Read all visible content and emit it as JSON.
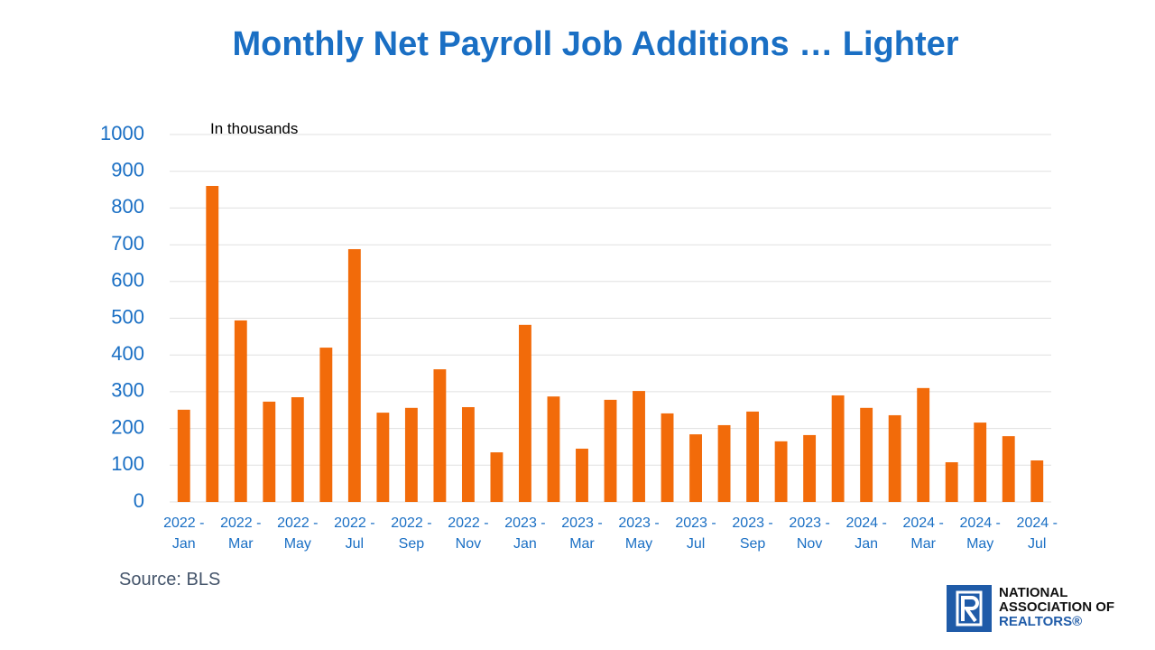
{
  "chart_data": {
    "type": "bar",
    "title": "Monthly Net Payroll Job Additions … Lighter",
    "annotation": "In thousands",
    "source": "Source: BLS",
    "categories": [
      "2022 - Jan",
      null,
      "2022 - Mar",
      null,
      "2022 - May",
      null,
      "2022 - Jul",
      null,
      "2022 - Sep",
      null,
      "2022 - Nov",
      null,
      "2023 - Jan",
      null,
      "2023 - Mar",
      null,
      "2023 - May",
      null,
      "2023 - Jul",
      null,
      "2023 - Sep",
      null,
      "2023 - Nov",
      null,
      "2024 - Jan",
      null,
      "2024 - Mar",
      null,
      "2024 - May",
      null,
      "2024 - Jul"
    ],
    "values": [
      251,
      860,
      494,
      273,
      285,
      420,
      688,
      243,
      256,
      361,
      258,
      135,
      482,
      287,
      145,
      278,
      302,
      241,
      184,
      209,
      246,
      165,
      182,
      290,
      256,
      236,
      310,
      108,
      216,
      179,
      113
    ],
    "color": "#f26b0a",
    "ylim": [
      0,
      1000
    ],
    "yticks": [
      0,
      100,
      200,
      300,
      400,
      500,
      600,
      700,
      800,
      900,
      1000
    ],
    "grid": true
  },
  "logo": {
    "lines": [
      "NATIONAL",
      "ASSOCIATION OF",
      "REALTORS®"
    ]
  }
}
